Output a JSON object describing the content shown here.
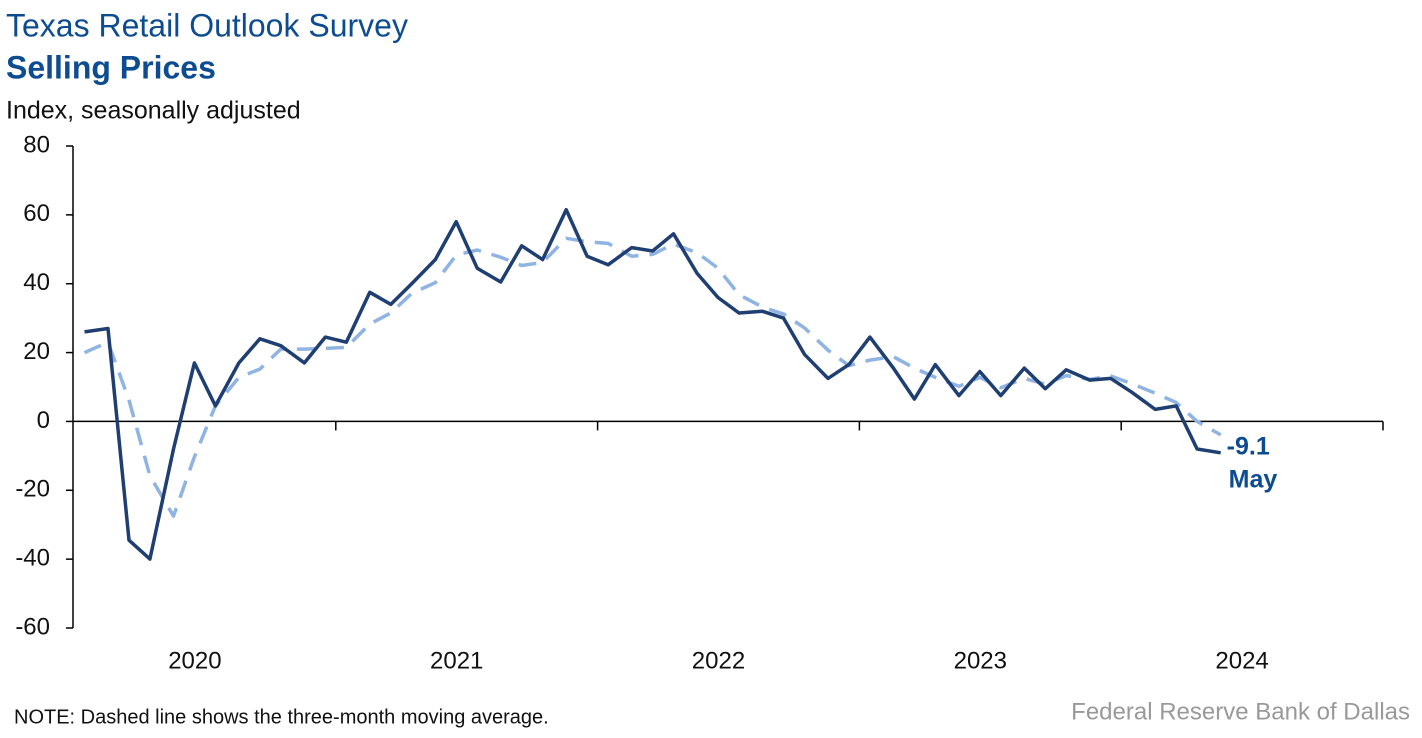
{
  "chart_data": {
    "type": "line",
    "title": "Texas Retail Outlook Survey",
    "subtitle": "Selling Prices",
    "y_label": "Index, seasonally adjusted",
    "note": "NOTE: Dashed line shows the three-month moving average.",
    "source": "Federal Reserve Bank of Dallas",
    "annotation": "May",
    "xlim": [
      2020,
      2025
    ],
    "xticks": [
      2021,
      2022,
      2023,
      2024,
      2025
    ],
    "xtick_labels": [
      {
        "value": 2020.5,
        "label": "2020"
      },
      {
        "value": 2021.5,
        "label": "2021"
      },
      {
        "value": 2022.5,
        "label": "2022"
      },
      {
        "value": 2023.5,
        "label": "2023"
      },
      {
        "value": 2024.5,
        "label": "2024"
      }
    ],
    "ylim": [
      -60,
      80
    ],
    "yticks": [
      -60,
      -40,
      -20,
      0,
      20,
      40,
      60,
      80
    ],
    "x": [
      2020.04,
      2020.13,
      2020.21,
      2020.29,
      2020.38,
      2020.46,
      2020.54,
      2020.63,
      2020.71,
      2020.79,
      2020.88,
      2020.96,
      2021.04,
      2021.13,
      2021.21,
      2021.29,
      2021.38,
      2021.46,
      2021.54,
      2021.63,
      2021.71,
      2021.79,
      2021.88,
      2021.96,
      2022.04,
      2022.13,
      2022.21,
      2022.29,
      2022.38,
      2022.46,
      2022.54,
      2022.63,
      2022.71,
      2022.79,
      2022.88,
      2022.96,
      2023.04,
      2023.13,
      2023.21,
      2023.29,
      2023.38,
      2023.46,
      2023.54,
      2023.63,
      2023.71,
      2023.79,
      2023.88,
      2023.96,
      2024.04,
      2024.13,
      2024.21,
      2024.29,
      2024.38
    ],
    "series": [
      {
        "color": "#1f3f73",
        "dashed": false,
        "values": [
          26,
          27,
          -34.5,
          -40,
          -8,
          17,
          4.5,
          17,
          24,
          22,
          17,
          24.5,
          23,
          37.5,
          34,
          40,
          47,
          58,
          44.5,
          40.5,
          51,
          47,
          61.5,
          48,
          45.5,
          50.5,
          49.5,
          54.5,
          43,
          36,
          31.5,
          32,
          30,
          19.5,
          12.5,
          16.5,
          24.5,
          15.5,
          6.5,
          16.5,
          7.5,
          14.5,
          7.5,
          15.5,
          9.5,
          15,
          12,
          12.5,
          8.5,
          3.5,
          4.5,
          -8,
          -9.1
        ]
      },
      {
        "color": "#8fb4e3",
        "dashed": true,
        "values": [
          20,
          23,
          6.2,
          -15.8,
          -27.5,
          -10.3,
          4.5,
          12.8,
          15.2,
          21,
          21,
          21.2,
          21.5,
          28.3,
          31.5,
          37.2,
          40.3,
          48.3,
          49.8,
          47.7,
          45.3,
          46.2,
          53.2,
          52.2,
          51.7,
          48,
          48.5,
          51.5,
          49,
          44.5,
          36.8,
          33.2,
          31.2,
          27.2,
          20.7,
          16.2,
          17.8,
          18.8,
          15.5,
          12.8,
          10.2,
          12.8,
          9.8,
          12.5,
          10.8,
          13.3,
          12.2,
          13.2,
          11,
          8.2,
          5.5,
          0,
          -3.9
        ]
      }
    ]
  }
}
